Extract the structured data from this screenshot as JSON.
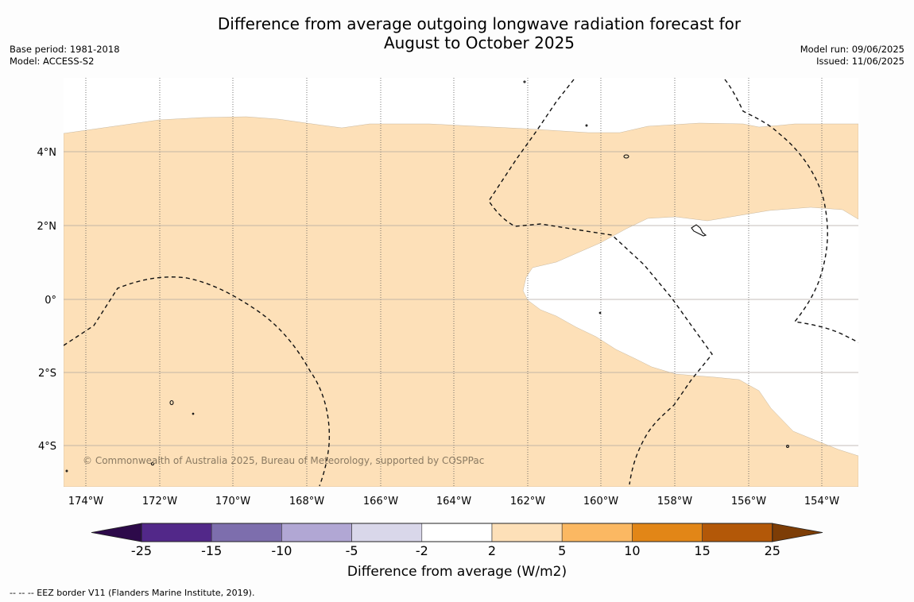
{
  "title_line1": "Difference from average outgoing longwave radiation forecast for",
  "title_line2": "August to October 2025",
  "meta_left": {
    "base_period": "Base period: 1981-2018",
    "model": "Model: ACCESS-S2"
  },
  "meta_right": {
    "model_run": "Model run: 09/06/2025",
    "issued": "Issued: 11/06/2025"
  },
  "copyright": "© Commonwealth of Australia 2025, Bureau of Meteorology, supported by COSPPac",
  "longitude_labels": [
    "174°W",
    "172°W",
    "170°W",
    "168°W",
    "166°W",
    "164°W",
    "162°W",
    "160°W",
    "158°W",
    "156°W",
    "154°W"
  ],
  "latitude_labels": [
    "4°N",
    "2°N",
    "0°",
    "2°S",
    "4°S"
  ],
  "colorbar": {
    "title": "Difference from average (W/m2)",
    "tick_labels": [
      "-25",
      "-15",
      "-10",
      "-5",
      "-2",
      "2",
      "5",
      "10",
      "15",
      "25"
    ],
    "colors": {
      "below_min": "#2d0a4a",
      "bins": [
        "#522889",
        "#7d6ead",
        "#b1a7d4",
        "#d9d7ea",
        "#ffffff",
        "#fde0b8",
        "#fbb862",
        "#e28617",
        "#b35808"
      ],
      "above_max": "#7d3d06"
    }
  },
  "map_colors": {
    "anomaly_fill": "#fde0b8",
    "ocean_neutral": "#ffffff"
  },
  "legend_note": "--  --  -- EEZ border V11 (Flanders Marine Institute, 2019)."
}
